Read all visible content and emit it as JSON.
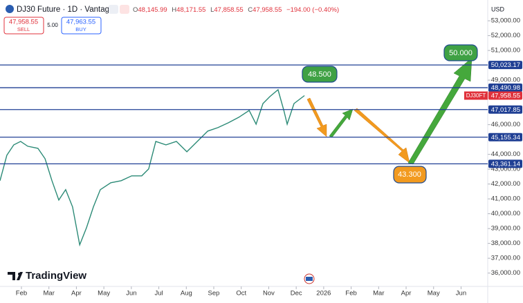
{
  "header": {
    "symbol": "DJ30 Future · 1D · Vantage",
    "o_label": "O",
    "open": "48,145.99",
    "h_label": "H",
    "high": "48,171.55",
    "l_label": "L",
    "low": "47,858.55",
    "c_label": "C",
    "close": "47,958.55",
    "change": "−194.00 (−0.40%)",
    "sell_price": "47,958.55",
    "sell": "SELL",
    "spread": "5.00",
    "buy_price": "47,963.55",
    "buy": "BUY",
    "currency": "USD",
    "logo": "TradingView"
  },
  "chart_data": {
    "type": "line",
    "x": [
      0.22,
      0.47,
      0.72,
      0.97,
      1.23,
      1.6,
      1.86,
      2.11,
      2.36,
      2.61,
      2.86,
      3.12,
      3.37,
      3.62,
      3.87,
      4.25,
      4.63,
      5.01,
      5.38,
      5.63,
      5.89,
      6.26,
      6.64,
      7.02,
      7.4,
      7.78,
      8.15,
      8.53,
      8.91,
      9.29,
      9.54,
      9.79,
      10.04,
      10.34,
      10.55,
      10.67,
      10.92,
      11.3
    ],
    "series": [
      {
        "name": "DJ30FT",
        "color": "#2b8a76",
        "values": [
          42224,
          43942,
          44639,
          44871,
          44546,
          44407,
          43710,
          42224,
          40923,
          41620,
          40458,
          37904,
          39065,
          40458,
          41620,
          42084,
          42224,
          42549,
          42549,
          43014,
          44871,
          44639,
          44871,
          44175,
          44871,
          45568,
          45801,
          46126,
          46497,
          46961,
          46032,
          47426,
          47891,
          48355,
          46961,
          46032,
          47426,
          47958.55
        ]
      }
    ],
    "last_price": {
      "value": 47958.55,
      "label": "47,958.55"
    },
    "xlim": [
      0.22,
      17.97
    ],
    "xticks": [
      {
        "value": 1,
        "label": "Feb"
      },
      {
        "value": 2,
        "label": "Mar"
      },
      {
        "value": 3,
        "label": "Apr"
      },
      {
        "value": 4,
        "label": "May"
      },
      {
        "value": 5,
        "label": "Jun"
      },
      {
        "value": 6,
        "label": "Jul"
      },
      {
        "value": 7,
        "label": "Aug"
      },
      {
        "value": 8,
        "label": "Sep"
      },
      {
        "value": 9,
        "label": "Oct"
      },
      {
        "value": 10,
        "label": "Nov"
      },
      {
        "value": 11,
        "label": "Dec"
      },
      {
        "value": 12,
        "label": "2026"
      },
      {
        "value": 13,
        "label": "Feb"
      },
      {
        "value": 14,
        "label": "Mar"
      },
      {
        "value": 15,
        "label": "Apr"
      },
      {
        "value": 16,
        "label": "May"
      },
      {
        "value": 17,
        "label": "Jun"
      }
    ],
    "ylim": [
      35100,
      54400
    ],
    "yticks": [
      {
        "value": 36000,
        "label": "36,000.00"
      },
      {
        "value": 37000,
        "label": "37,000.00"
      },
      {
        "value": 38000,
        "label": "38,000.00"
      },
      {
        "value": 39000,
        "label": "39,000.00"
      },
      {
        "value": 40000,
        "label": "40,000.00"
      },
      {
        "value": 41000,
        "label": "41,000.00"
      },
      {
        "value": 42000,
        "label": "42,000.00"
      },
      {
        "value": 43000,
        "label": "43,000.00"
      },
      {
        "value": 44000,
        "label": "44,000.00"
      },
      {
        "value": 46000,
        "label": "46,000.00"
      },
      {
        "value": 49000,
        "label": "49,000.00"
      },
      {
        "value": 51000,
        "label": "51,000.00"
      },
      {
        "value": 52000,
        "label": "52,000.00"
      },
      {
        "value": 53000,
        "label": "53,000.00"
      }
    ],
    "levels": [
      {
        "value": 50023.17,
        "label": "50,023.17"
      },
      {
        "value": 48490.98,
        "label": "48,490.98"
      },
      {
        "value": 47017.85,
        "label": "47,017.85"
      },
      {
        "value": 45155.34,
        "label": "45,155.34"
      },
      {
        "value": 43361.14,
        "label": "43,361.14"
      }
    ],
    "level_color": "#1f3f94",
    "annotations": [
      "48.500",
      "43.300",
      "50.000"
    ]
  }
}
